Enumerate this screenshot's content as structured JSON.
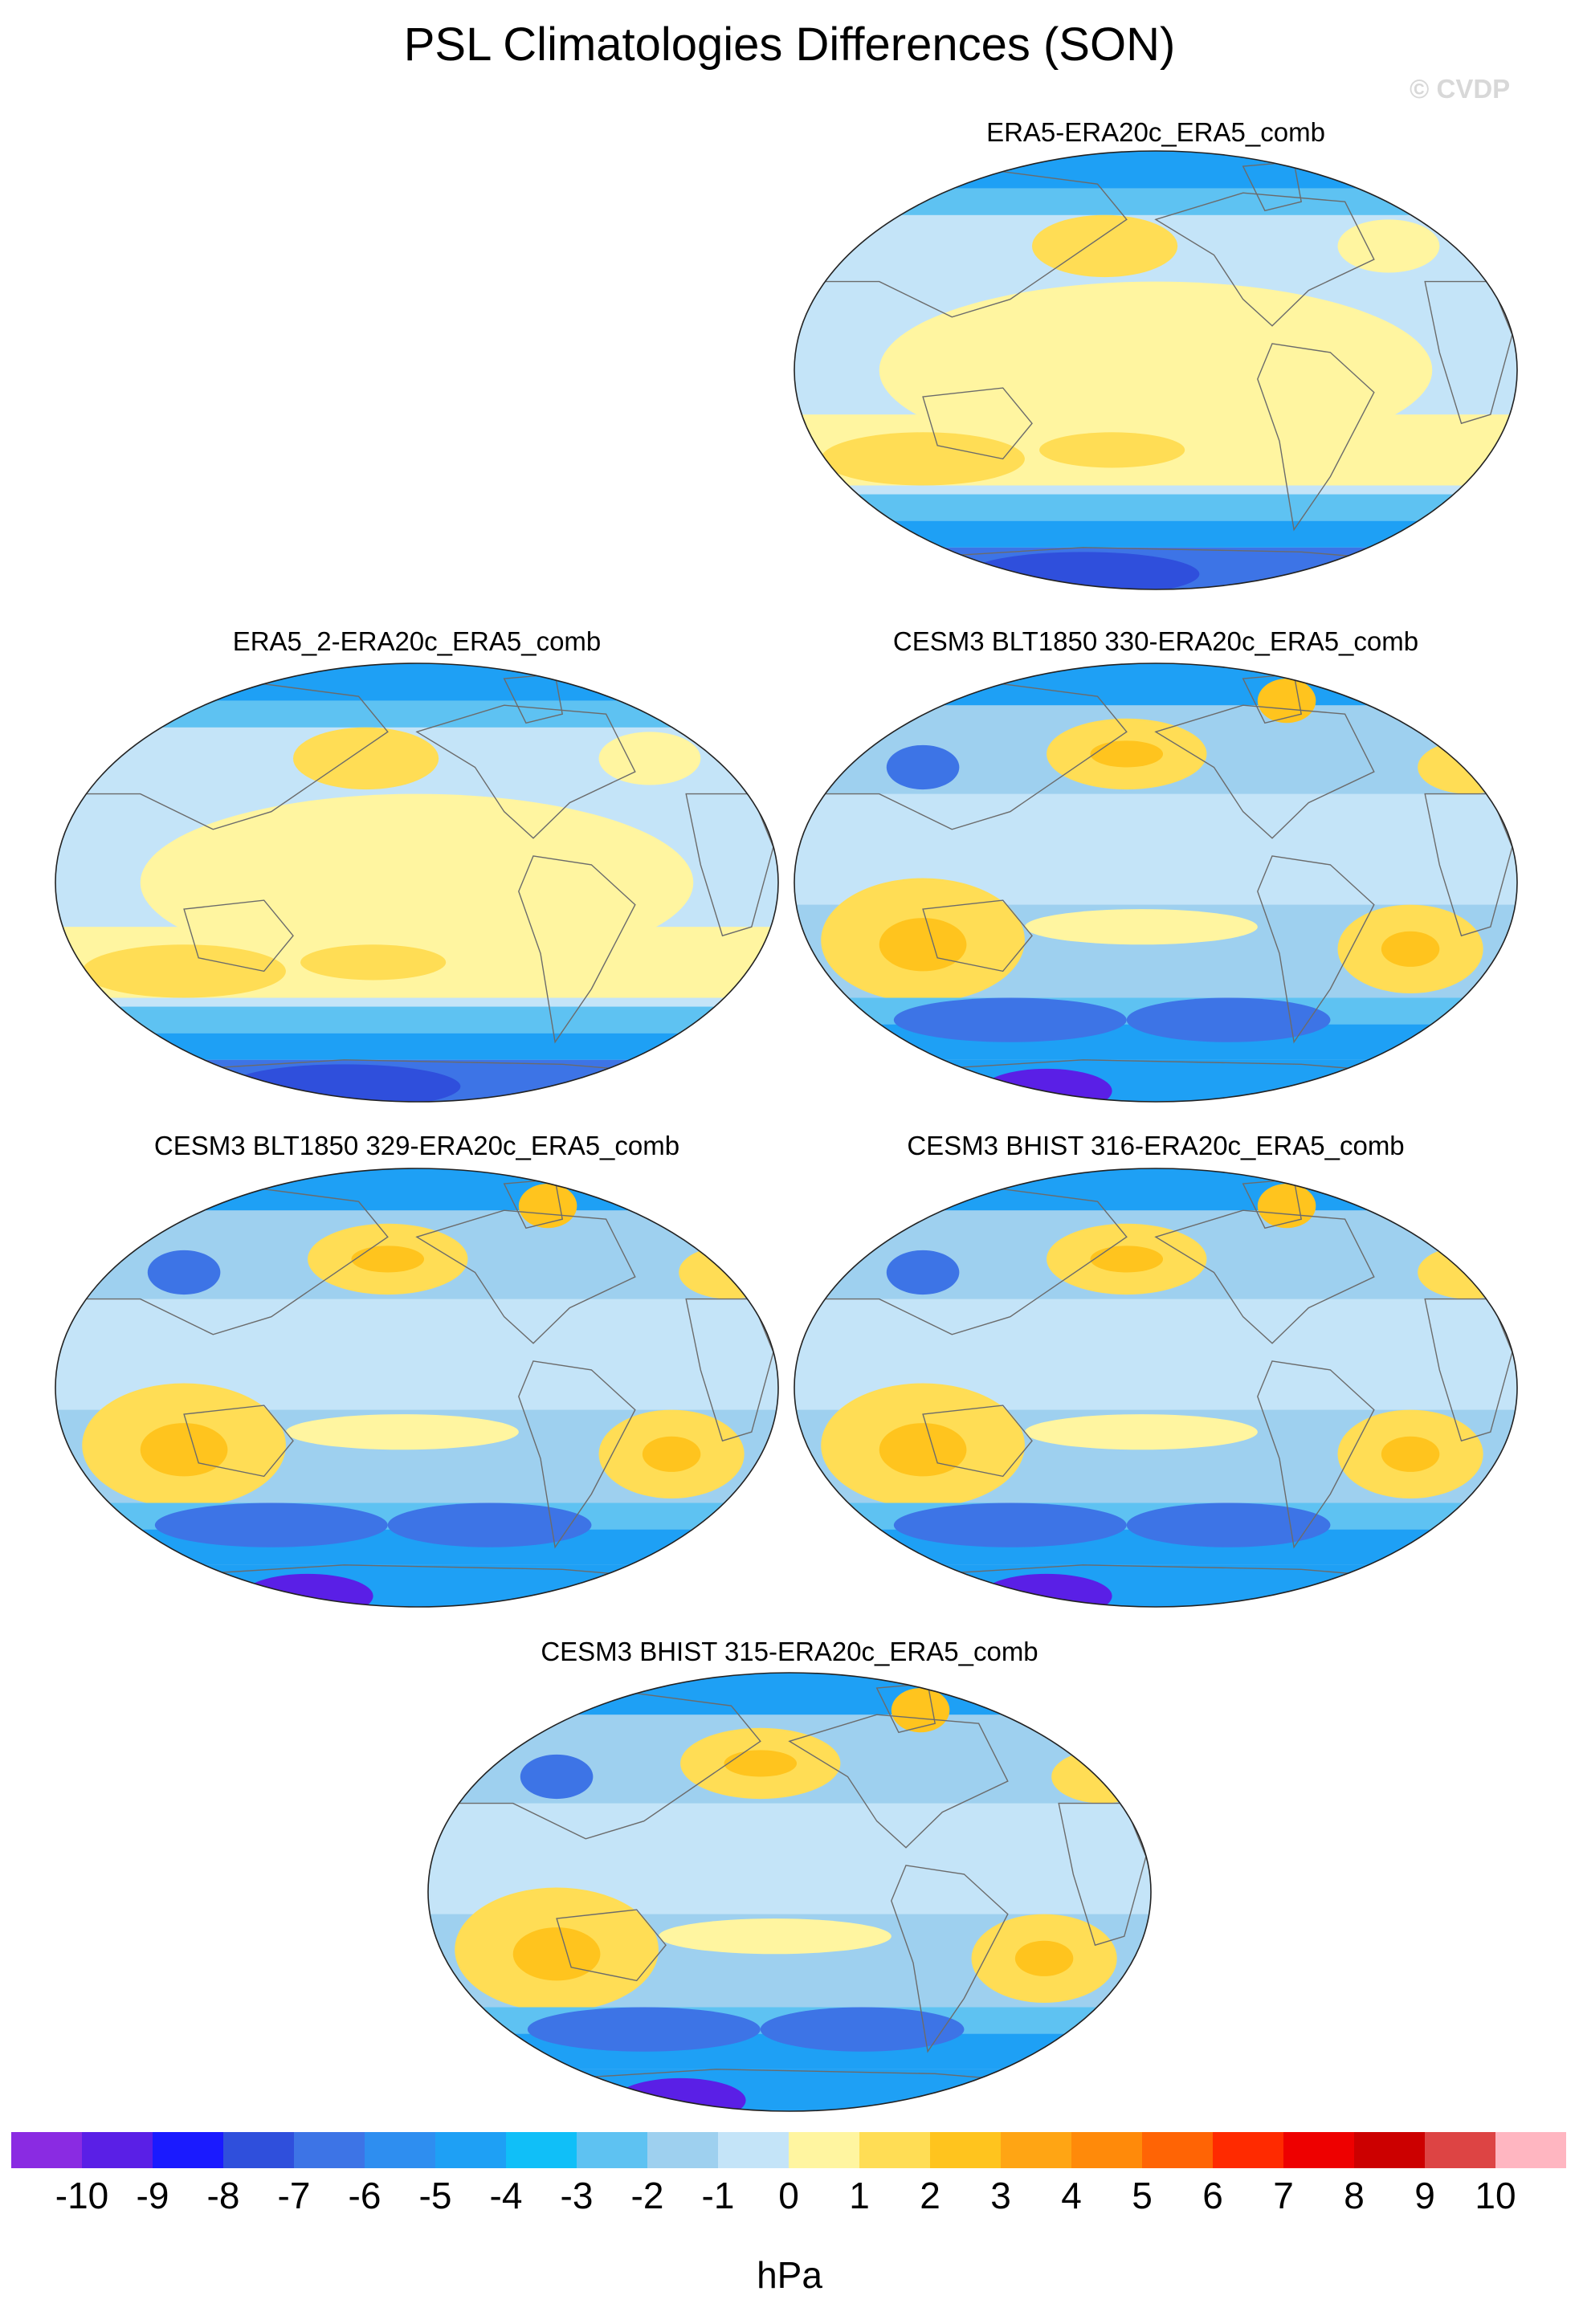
{
  "figure": {
    "title": "PSL Climatologies Differences (SON)",
    "watermark": "© CVDP",
    "units": "hPa"
  },
  "panels": [
    {
      "label": "ERA5-ERA20c_ERA5_comb",
      "style": "reanalysis"
    },
    {
      "label": "ERA5_2-ERA20c_ERA5_comb",
      "style": "reanalysis"
    },
    {
      "label": "CESM3 BLT1850 330-ERA20c_ERA5_comb",
      "style": "model"
    },
    {
      "label": "CESM3 BLT1850 329-ERA20c_ERA5_comb",
      "style": "model"
    },
    {
      "label": "CESM3 BHIST 316-ERA20c_ERA5_comb",
      "style": "model"
    },
    {
      "label": "CESM3 BHIST 315-ERA20c_ERA5_comb",
      "style": "model"
    }
  ],
  "colorbar": {
    "colors": [
      "#8a2be2",
      "#5a1fe6",
      "#1a1aff",
      "#2f4fdc",
      "#3d74e6",
      "#2e8ef0",
      "#1ea0f5",
      "#10bff8",
      "#5ec2f2",
      "#9ed0ef",
      "#c4e4f8",
      "#fff5a0",
      "#ffdd55",
      "#ffc41e",
      "#ffa514",
      "#ff8a0a",
      "#ff6405",
      "#ff2a00",
      "#ee0000",
      "#cc0000",
      "#dd4444",
      "#ffb6c1"
    ],
    "tick_labels": [
      "-10",
      "-9",
      "-8",
      "-7",
      "-6",
      "-5",
      "-4",
      "-3",
      "-2",
      "-1",
      "0",
      "1",
      "2",
      "3",
      "4",
      "5",
      "6",
      "7",
      "8",
      "9",
      "10"
    ]
  },
  "palette": {
    "deep_blue": "#2f4fdc",
    "blue": "#3d74e6",
    "mid_blue": "#1ea0f5",
    "sky": "#5ec2f2",
    "light_blue": "#9ed0ef",
    "pale_blue": "#c4e4f8",
    "pale_yellow": "#fff5a0",
    "yellow": "#ffdd55",
    "gold": "#ffc41e",
    "purple": "#5a1fe6",
    "coast": "#6b6b6b"
  }
}
